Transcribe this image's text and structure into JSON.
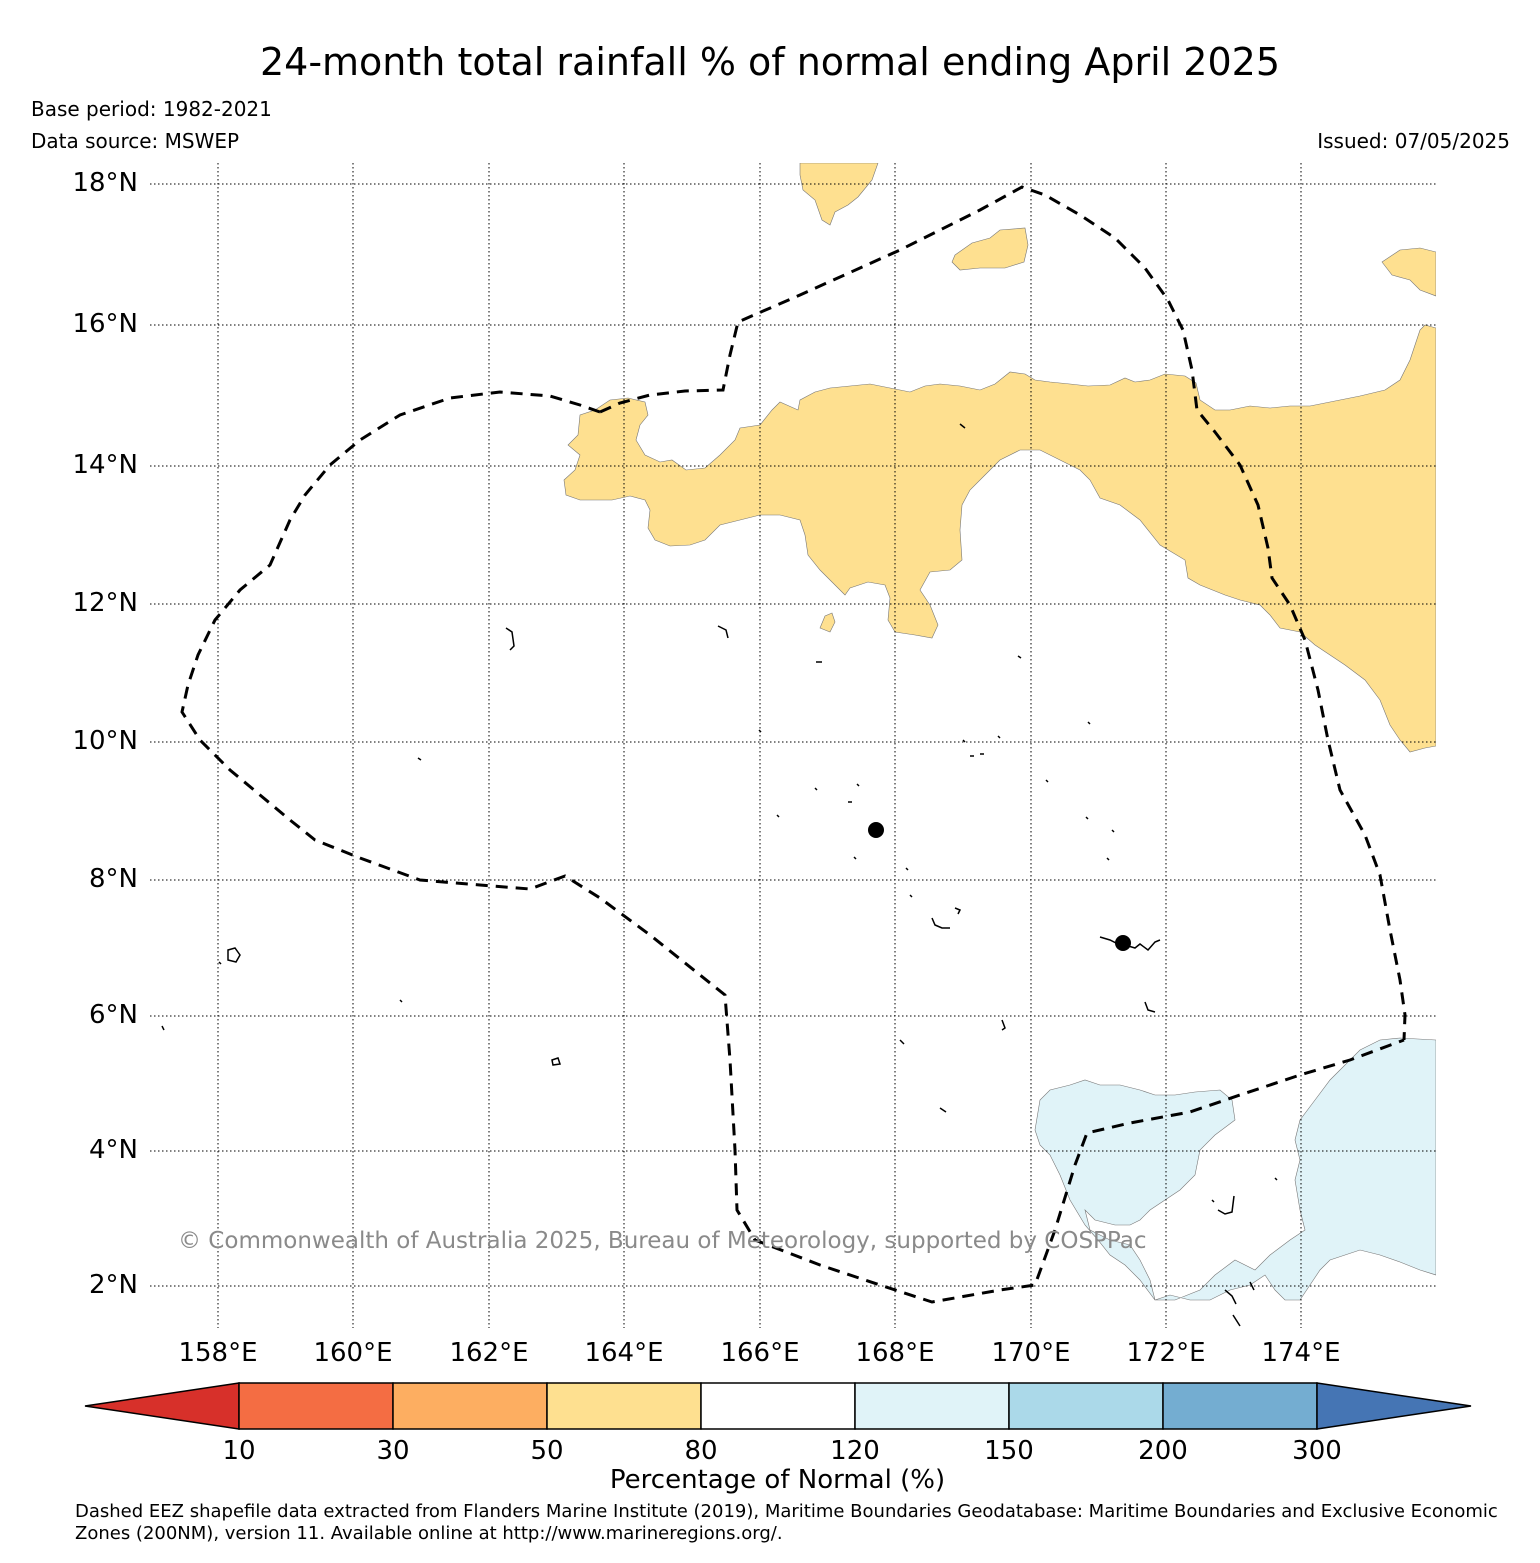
{
  "title": "24-month total rainfall % of normal ending April 2025",
  "base_period": "Base period: 1982-2021",
  "data_source": "Data source: MSWEP",
  "issued": "Issued: 07/05/2025",
  "lat_labels": [
    "18°N",
    "16°N",
    "14°N",
    "12°N",
    "10°N",
    "8°N",
    "6°N",
    "4°N",
    "2°N"
  ],
  "lon_labels": [
    "158°E",
    "160°E",
    "162°E",
    "164°E",
    "166°E",
    "168°E",
    "170°E",
    "172°E",
    "174°E"
  ],
  "copyright": "© Commonwealth of Australia 2025, Bureau of Meteorology, supported by COSPPac",
  "colorbar": {
    "label": "Percentage of Normal (%)",
    "ticks": [
      "10",
      "30",
      "50",
      "80",
      "120",
      "150",
      "200",
      "300"
    ],
    "colors": [
      "#d7302a",
      "#f46d43",
      "#fdae61",
      "#fee090",
      "#ffffff",
      "#e0f3f8",
      "#abd9e9",
      "#74add1",
      "#4575b4"
    ]
  },
  "credit": "Dashed EEZ shapefile data extracted from Flanders Marine Institute (2019), Maritime Boundaries Geodatabase: Maritime Boundaries and Exclusive Economic Zones (200NM), version 11. Available online at http://www.marineregions.org/."
}
